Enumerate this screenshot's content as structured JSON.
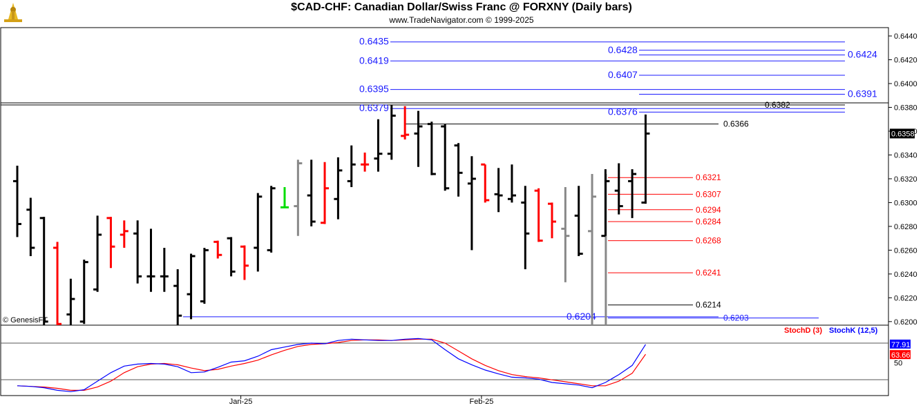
{
  "header": {
    "title": "$CAD-CHF:  Canadian Dollar/Swiss Franc @ FORXNY  (Daily bars)",
    "subtitle": "www.TradeNavigator.com © 1999-2025",
    "watermark": "© GenesisFT"
  },
  "colors": {
    "up": "#000000",
    "down": "#ff0000",
    "neutral": "#888888",
    "green": "#00dd00",
    "fib_blue": "#1a1aff",
    "stochD": "#ff0000",
    "stochK": "#0000ff"
  },
  "chart_data": {
    "type": "ohlc",
    "price_axis": {
      "ylim": [
        0.6197,
        0.6447
      ],
      "ticks": [
        "0.6200",
        "0.6220",
        "0.6240",
        "0.6260",
        "0.6280",
        "0.6300",
        "0.6320",
        "0.6340",
        "0.6360",
        "0.6380",
        "0.6400",
        "0.6420",
        "0.6440"
      ],
      "last_price": "0.6358"
    },
    "x_labels": [
      {
        "label": "Jan-25",
        "bar": 16
      },
      {
        "label": "Feb-25",
        "bar": 34
      }
    ],
    "bars": [
      {
        "o": 0.6318,
        "h": 0.6331,
        "l": 0.6271,
        "c": 0.6282,
        "color": "up"
      },
      {
        "o": 0.6294,
        "h": 0.6304,
        "l": 0.6255,
        "c": 0.6262,
        "color": "up"
      },
      {
        "o": 0.6287,
        "h": 0.6288,
        "l": 0.6195,
        "c": 0.62,
        "color": "up"
      },
      {
        "o": 0.6262,
        "h": 0.6267,
        "l": 0.6197,
        "c": 0.6198,
        "color": "down"
      },
      {
        "o": 0.6206,
        "h": 0.6236,
        "l": 0.6195,
        "c": 0.6219,
        "color": "up"
      },
      {
        "o": 0.62,
        "h": 0.6252,
        "l": 0.6198,
        "c": 0.625,
        "color": "up"
      },
      {
        "o": 0.6227,
        "h": 0.6289,
        "l": 0.6225,
        "c": 0.6273,
        "color": "up"
      },
      {
        "o": 0.6287,
        "h": 0.6288,
        "l": 0.6245,
        "c": 0.6263,
        "color": "down"
      },
      {
        "o": 0.6273,
        "h": 0.6285,
        "l": 0.6262,
        "c": 0.6276,
        "color": "down"
      },
      {
        "o": 0.6274,
        "h": 0.6285,
        "l": 0.6232,
        "c": 0.6238,
        "color": "up"
      },
      {
        "o": 0.6238,
        "h": 0.6278,
        "l": 0.6225,
        "c": 0.6238,
        "color": "up"
      },
      {
        "o": 0.6238,
        "h": 0.6262,
        "l": 0.6225,
        "c": 0.6238,
        "color": "up"
      },
      {
        "o": 0.623,
        "h": 0.6244,
        "l": 0.6196,
        "c": 0.6205,
        "color": "up"
      },
      {
        "o": 0.6223,
        "h": 0.6257,
        "l": 0.6202,
        "c": 0.6255,
        "color": "up"
      },
      {
        "o": 0.6217,
        "h": 0.6262,
        "l": 0.6215,
        "c": 0.626,
        "color": "up"
      },
      {
        "o": 0.6267,
        "h": 0.6268,
        "l": 0.6253,
        "c": 0.6256,
        "color": "down"
      },
      {
        "o": 0.627,
        "h": 0.6271,
        "l": 0.6238,
        "c": 0.6242,
        "color": "up"
      },
      {
        "o": 0.6263,
        "h": 0.6264,
        "l": 0.6235,
        "c": 0.6247,
        "color": "down"
      },
      {
        "o": 0.6262,
        "h": 0.6308,
        "l": 0.6242,
        "c": 0.6305,
        "color": "up"
      },
      {
        "o": 0.626,
        "h": 0.6314,
        "l": 0.6258,
        "c": 0.6312,
        "color": "up"
      },
      {
        "o": 0.6296,
        "h": 0.6313,
        "l": 0.6296,
        "c": 0.6296,
        "color": "green"
      },
      {
        "o": 0.6297,
        "h": 0.6336,
        "l": 0.6272,
        "c": 0.6333,
        "color": "neutral"
      },
      {
        "o": 0.6306,
        "h": 0.6336,
        "l": 0.628,
        "c": 0.6284,
        "color": "up"
      },
      {
        "o": 0.6283,
        "h": 0.6334,
        "l": 0.6282,
        "c": 0.6312,
        "color": "down"
      },
      {
        "o": 0.6303,
        "h": 0.6338,
        "l": 0.6286,
        "c": 0.6327,
        "color": "up"
      },
      {
        "o": 0.6318,
        "h": 0.6348,
        "l": 0.6313,
        "c": 0.6332,
        "color": "up"
      },
      {
        "o": 0.6332,
        "h": 0.6342,
        "l": 0.6326,
        "c": 0.6332,
        "color": "down"
      },
      {
        "o": 0.6337,
        "h": 0.637,
        "l": 0.6326,
        "c": 0.6341,
        "color": "up"
      },
      {
        "o": 0.6341,
        "h": 0.6382,
        "l": 0.6336,
        "c": 0.6373,
        "color": "up"
      },
      {
        "o": 0.6356,
        "h": 0.6381,
        "l": 0.6353,
        "c": 0.6357,
        "color": "down"
      },
      {
        "o": 0.6358,
        "h": 0.6377,
        "l": 0.633,
        "c": 0.6364,
        "color": "up"
      },
      {
        "o": 0.6366,
        "h": 0.6368,
        "l": 0.6323,
        "c": 0.6324,
        "color": "up"
      },
      {
        "o": 0.6364,
        "h": 0.6366,
        "l": 0.631,
        "c": 0.6312,
        "color": "up"
      },
      {
        "o": 0.6348,
        "h": 0.635,
        "l": 0.6305,
        "c": 0.6325,
        "color": "up"
      },
      {
        "o": 0.6316,
        "h": 0.6339,
        "l": 0.626,
        "c": 0.632,
        "color": "up"
      },
      {
        "o": 0.6332,
        "h": 0.6332,
        "l": 0.63,
        "c": 0.6302,
        "color": "down"
      },
      {
        "o": 0.6307,
        "h": 0.6329,
        "l": 0.6292,
        "c": 0.6306,
        "color": "up"
      },
      {
        "o": 0.6303,
        "h": 0.6332,
        "l": 0.63,
        "c": 0.6306,
        "color": "up"
      },
      {
        "o": 0.63,
        "h": 0.6314,
        "l": 0.6244,
        "c": 0.6274,
        "color": "up"
      },
      {
        "o": 0.631,
        "h": 0.6312,
        "l": 0.6267,
        "c": 0.6268,
        "color": "down"
      },
      {
        "o": 0.6299,
        "h": 0.63,
        "l": 0.627,
        "c": 0.6284,
        "color": "down"
      },
      {
        "o": 0.6278,
        "h": 0.6313,
        "l": 0.6233,
        "c": 0.6272,
        "color": "neutral"
      },
      {
        "o": 0.6289,
        "h": 0.6314,
        "l": 0.6255,
        "c": 0.6257,
        "color": "up"
      },
      {
        "o": 0.6276,
        "h": 0.6324,
        "l": 0.6195,
        "c": 0.6305,
        "color": "neutral"
      },
      {
        "o": 0.6272,
        "h": 0.6328,
        "l": 0.6272,
        "c": 0.6318,
        "color": "up"
      },
      {
        "o": 0.631,
        "h": 0.6333,
        "l": 0.629,
        "c": 0.6297,
        "color": "up"
      },
      {
        "o": 0.6318,
        "h": 0.6328,
        "l": 0.6287,
        "c": 0.6324,
        "color": "up"
      },
      {
        "o": 0.63,
        "h": 0.6374,
        "l": 0.6299,
        "c": 0.6358,
        "color": "up"
      }
    ],
    "fib_levels": [
      {
        "label": "0.6435",
        "value": 0.6435,
        "color": "blue",
        "label_side": "left"
      },
      {
        "label": "0.6428",
        "value": 0.6428,
        "color": "blue",
        "label_side": "mid"
      },
      {
        "label": "0.6424",
        "value": 0.6424,
        "color": "blue",
        "label_side": "right"
      },
      {
        "label": "0.6419",
        "value": 0.6419,
        "color": "blue",
        "label_side": "left"
      },
      {
        "label": "0.6407",
        "value": 0.6407,
        "color": "blue",
        "label_side": "mid"
      },
      {
        "label": "0.6395",
        "value": 0.6395,
        "color": "blue",
        "label_side": "left"
      },
      {
        "label": "0.6391",
        "value": 0.6391,
        "color": "blue",
        "label_side": "right"
      },
      {
        "label": "0.6382",
        "value": 0.6382,
        "color": "black",
        "label_side": "right-black"
      },
      {
        "label": "0.6379",
        "value": 0.6379,
        "color": "blue",
        "label_side": "left"
      },
      {
        "label": "0.6376",
        "value": 0.6376,
        "color": "blue",
        "label_side": "mid"
      },
      {
        "label": "0.6366",
        "value": 0.6366,
        "color": "black",
        "label_side": "right-black"
      },
      {
        "label": "0.6321",
        "value": 0.6321,
        "color": "red",
        "label_side": "red"
      },
      {
        "label": "0.6307",
        "value": 0.6307,
        "color": "red",
        "label_side": "red"
      },
      {
        "label": "0.6294",
        "value": 0.6294,
        "color": "red",
        "label_side": "red"
      },
      {
        "label": "0.6284",
        "value": 0.6284,
        "color": "red",
        "label_side": "red"
      },
      {
        "label": "0.6268",
        "value": 0.6268,
        "color": "red",
        "label_side": "red"
      },
      {
        "label": "0.6241",
        "value": 0.6241,
        "color": "red",
        "label_side": "red"
      },
      {
        "label": "0.6214",
        "value": 0.6214,
        "color": "black",
        "label_side": "red"
      },
      {
        "label": "0.6204",
        "value": 0.6204,
        "color": "blue",
        "label_side": "mid"
      },
      {
        "label": "0.6203",
        "value": 0.6203,
        "color": "blue",
        "label_side": "right-small"
      }
    ],
    "stochastic": {
      "legend_d": "StochD (3)",
      "legend_k": "StochK (12,5)",
      "ylim": [
        0,
        100
      ],
      "ticks": [
        "50"
      ],
      "last_k": "77.91",
      "last_d": "63.66",
      "k": [
        15,
        14,
        12,
        8,
        6,
        9,
        22,
        35,
        45,
        48,
        49,
        48,
        44,
        35,
        36,
        43,
        51,
        53,
        60,
        70,
        74,
        78,
        80,
        79,
        84,
        86,
        85,
        84,
        84,
        86,
        87,
        85,
        70,
        56,
        47,
        39,
        33,
        28,
        27,
        25,
        20,
        18,
        16,
        12,
        20,
        32,
        46,
        78
      ],
      "d": [
        15,
        14,
        13,
        11,
        8,
        8,
        13,
        22,
        35,
        44,
        48,
        49,
        47,
        42,
        38,
        40,
        45,
        49,
        54,
        62,
        69,
        75,
        78,
        79,
        81,
        84,
        85,
        85,
        84,
        85,
        86,
        86,
        80,
        68,
        56,
        46,
        38,
        32,
        29,
        27,
        24,
        21,
        18,
        15,
        15,
        22,
        34,
        63
      ]
    }
  }
}
